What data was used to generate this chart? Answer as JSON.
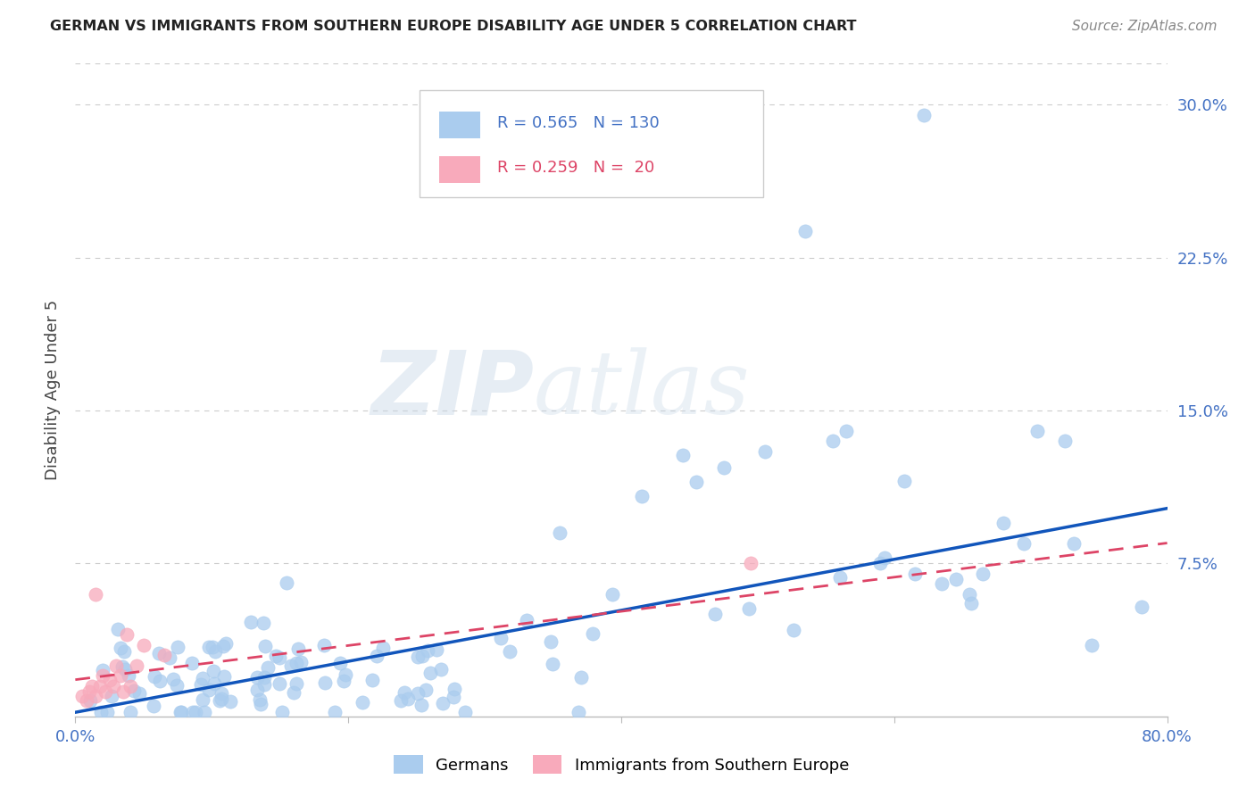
{
  "title": "GERMAN VS IMMIGRANTS FROM SOUTHERN EUROPE DISABILITY AGE UNDER 5 CORRELATION CHART",
  "source": "Source: ZipAtlas.com",
  "ylabel": "Disability Age Under 5",
  "xlim": [
    0.0,
    0.8
  ],
  "ylim": [
    0.0,
    0.32
  ],
  "yticks": [
    0.0,
    0.075,
    0.15,
    0.225,
    0.3
  ],
  "ytick_labels": [
    "",
    "7.5%",
    "15.0%",
    "22.5%",
    "30.0%"
  ],
  "xticks": [
    0.0,
    0.2,
    0.4,
    0.6,
    0.8
  ],
  "xtick_labels": [
    "0.0%",
    "",
    "",
    "",
    "80.0%"
  ],
  "german_color": "#aaccee",
  "immigrant_color": "#f8aabb",
  "german_line_color": "#1155bb",
  "immigrant_line_color": "#dd4466",
  "german_R": 0.565,
  "german_N": 130,
  "immigrant_R": 0.259,
  "immigrant_N": 20,
  "watermark_text": "ZIPatlas",
  "background_color": "#ffffff",
  "grid_color": "#cccccc",
  "legend_label_german": "Germans",
  "legend_label_immigrant": "Immigrants from Southern Europe",
  "tick_color": "#4472c4",
  "title_color": "#222222",
  "source_color": "#888888",
  "ylabel_color": "#444444"
}
